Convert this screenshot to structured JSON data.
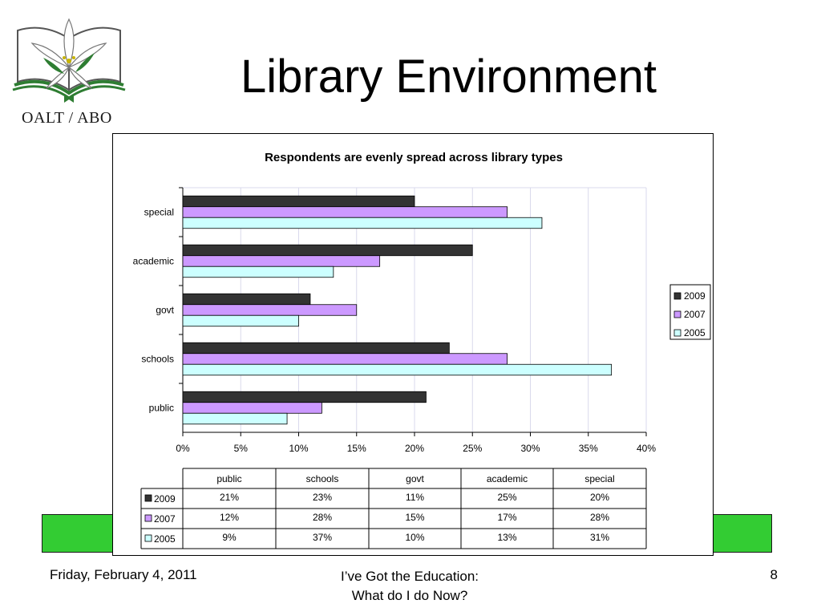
{
  "slide": {
    "title": "Library Environment",
    "logo_text": "OALT / ABO",
    "footer_date": "Friday, February 4, 2011",
    "footer_center_line1": "I’ve Got the Education:",
    "footer_center_line2": "What do I do Now?",
    "page_number": "8"
  },
  "colors": {
    "band_green": "#33cc33",
    "series_2009": "#333333",
    "series_2007": "#cc99ff",
    "series_2005": "#ccffff",
    "grid": "#d9d9ec"
  },
  "chart_data": {
    "type": "bar",
    "orientation": "horizontal",
    "title": "Respondents are evenly spread across library types",
    "categories": [
      "public",
      "schools",
      "govt",
      "academic",
      "special"
    ],
    "series": [
      {
        "name": "2009",
        "values": [
          21,
          23,
          11,
          25,
          20
        ],
        "color": "#333333"
      },
      {
        "name": "2007",
        "values": [
          12,
          28,
          15,
          17,
          28
        ],
        "color": "#cc99ff"
      },
      {
        "name": "2005",
        "values": [
          9,
          37,
          10,
          13,
          31
        ],
        "color": "#ccffff"
      }
    ],
    "xlim": [
      0,
      40
    ],
    "x_ticks": [
      "0%",
      "5%",
      "10%",
      "15%",
      "20%",
      "25%",
      "30%",
      "35%",
      "40%"
    ],
    "value_format": "%",
    "grid": true,
    "legend_position": "right",
    "data_table": {
      "header": [
        "public",
        "schools",
        "govt",
        "academic",
        "special"
      ],
      "rows": [
        {
          "label": "2009",
          "cells": [
            "21%",
            "23%",
            "11%",
            "25%",
            "20%"
          ]
        },
        {
          "label": "2007",
          "cells": [
            "12%",
            "28%",
            "15%",
            "17%",
            "28%"
          ]
        },
        {
          "label": "2005",
          "cells": [
            "9%",
            "37%",
            "10%",
            "13%",
            "31%"
          ]
        }
      ]
    }
  }
}
